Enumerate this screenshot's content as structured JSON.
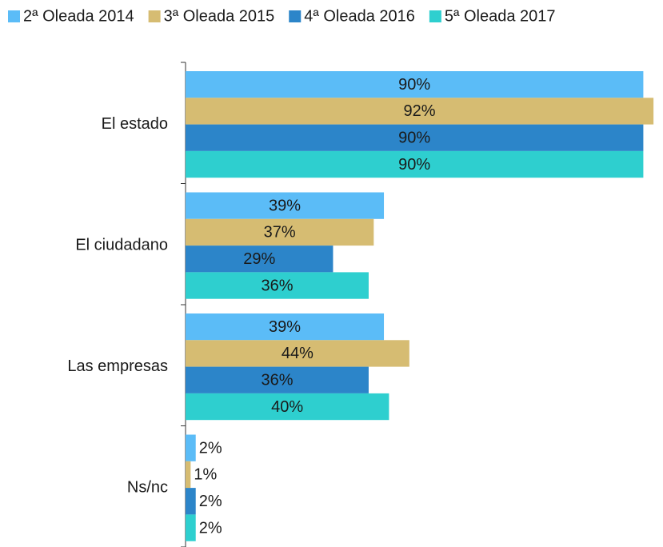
{
  "chart_data": {
    "type": "hbar",
    "categories": [
      "El estado",
      "El ciudadano",
      "Las empresas",
      "Ns/nc"
    ],
    "series": [
      {
        "name": "2ª Oleada 2014",
        "color": "#5bbcf7",
        "values": [
          90,
          39,
          39,
          2
        ],
        "value_labels": [
          "90%",
          "39%",
          "39%",
          "2%"
        ]
      },
      {
        "name": "3ª Oleada 2015",
        "color": "#d6bc72",
        "values": [
          92,
          37,
          44,
          1
        ],
        "value_labels": [
          "92%",
          "37%",
          "44%",
          "1%"
        ]
      },
      {
        "name": "4ª Oleada 2016",
        "color": "#2c85c9",
        "values": [
          90,
          29,
          36,
          2
        ],
        "value_labels": [
          "90%",
          "29%",
          "36%",
          "2%"
        ]
      },
      {
        "name": "5ª Oleada 2017",
        "color": "#2ecfcf",
        "values": [
          90,
          36,
          40,
          2
        ],
        "value_labels": [
          "90%",
          "36%",
          "40%",
          "2%"
        ]
      }
    ],
    "legend": "top"
  }
}
